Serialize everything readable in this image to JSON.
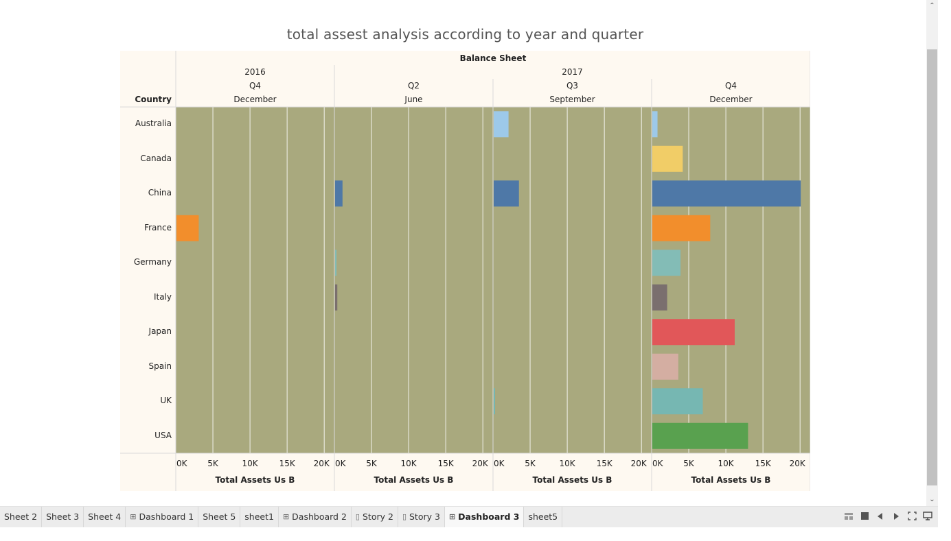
{
  "title": "total assest analysis according to year and quarter",
  "chart_data": {
    "type": "bar",
    "orientation": "horizontal",
    "header_title": "Balance Sheet",
    "row_header": "Country",
    "years": [
      {
        "label": "2016",
        "span": [
          0,
          1
        ]
      },
      {
        "label": "2017",
        "span": [
          1,
          4
        ]
      }
    ],
    "panels": [
      {
        "quarter": "Q4",
        "month": "December"
      },
      {
        "quarter": "Q2",
        "month": "June"
      },
      {
        "quarter": "Q3",
        "month": "September"
      },
      {
        "quarter": "Q4",
        "month": "December"
      }
    ],
    "categories": [
      "Australia",
      "Canada",
      "China",
      "France",
      "Germany",
      "Italy",
      "Japan",
      "Spain",
      "UK",
      "USA"
    ],
    "colors": [
      "#9dc9e9",
      "#f1cd67",
      "#4e78a7",
      "#f28e2c",
      "#83bcb6",
      "#7a6f6e",
      "#e15759",
      "#d4aea2",
      "#76b7b2",
      "#59a14f"
    ],
    "values": [
      [
        0,
        0,
        0,
        3000,
        0,
        0,
        0,
        0,
        0,
        0
      ],
      [
        0,
        0,
        1000,
        0,
        200,
        300,
        0,
        0,
        0,
        0
      ],
      [
        2000,
        0,
        3400,
        0,
        0,
        0,
        0,
        0,
        150,
        0
      ],
      [
        700,
        4100,
        20000,
        7800,
        3800,
        2000,
        11100,
        3500,
        6800,
        12900
      ]
    ],
    "xlim": [
      0,
      21000
    ],
    "xticks": [
      "0K",
      "5K",
      "10K",
      "15K",
      "20K"
    ],
    "xtick_values": [
      0,
      5000,
      10000,
      15000,
      20000
    ],
    "xlabel": "Total Assets Us B",
    "plot_background": "#a9a97e",
    "header_background": "#fef9f1"
  },
  "scrollbar": {
    "up": "⌃",
    "down": "⌄"
  },
  "tabs": [
    {
      "label": "Sheet 2",
      "icon": ""
    },
    {
      "label": "Sheet 3",
      "icon": ""
    },
    {
      "label": "Sheet 4",
      "icon": ""
    },
    {
      "label": "Dashboard 1",
      "icon": "dashboard-icon"
    },
    {
      "label": "Sheet 5",
      "icon": ""
    },
    {
      "label": "sheet1",
      "icon": ""
    },
    {
      "label": "Dashboard 2",
      "icon": "dashboard-icon"
    },
    {
      "label": "Story 2",
      "icon": "story-icon"
    },
    {
      "label": "Story 3",
      "icon": "story-icon"
    },
    {
      "label": "Dashboard 3",
      "icon": "dashboard-icon",
      "active": true
    },
    {
      "label": "sheet5",
      "icon": ""
    }
  ],
  "tab_controls": [
    "show-filmstrip-icon",
    "show-tabs-icon",
    "previous-icon",
    "next-icon",
    "fullscreen-icon",
    "presentation-icon"
  ]
}
